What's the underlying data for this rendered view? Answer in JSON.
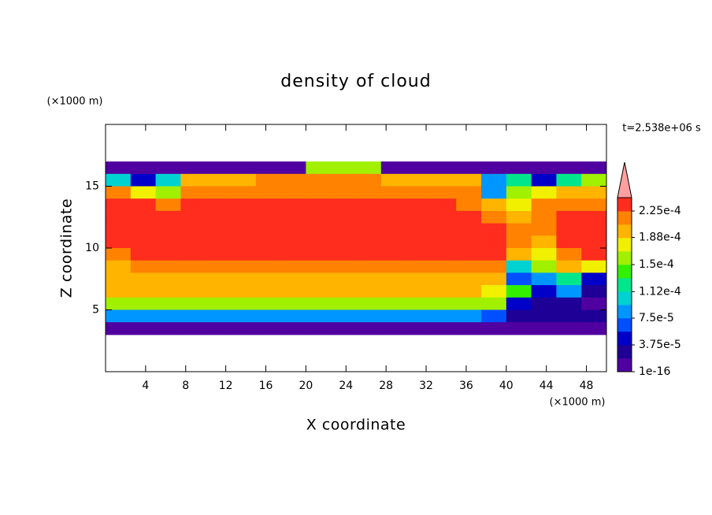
{
  "chart_data": {
    "type": "contour",
    "title": "density of cloud",
    "xlabel": "X coordinate",
    "ylabel": "Z coordinate",
    "x_unit": "(×1000 m)",
    "y_unit": "(×1000 m)",
    "time_label": "t=2.538e+06 s",
    "xlim": [
      0,
      50
    ],
    "ylim": [
      0,
      20
    ],
    "xticks": [
      4,
      8,
      12,
      16,
      20,
      24,
      28,
      32,
      36,
      40,
      44,
      48
    ],
    "yticks": [
      5,
      10,
      15
    ],
    "x": [
      1.25,
      3.75,
      6.25,
      8.75,
      11.25,
      13.75,
      16.25,
      18.75,
      21.25,
      23.75,
      26.25,
      28.75,
      31.25,
      33.75,
      36.25,
      38.75,
      41.25,
      43.75,
      46.25,
      48.75
    ],
    "y": [
      16.5,
      15.5,
      14.5,
      13.5,
      12.5,
      11.5,
      10.5,
      9.5,
      8.5,
      7.5,
      6.5,
      5.5,
      4.5,
      3.5
    ],
    "z": [
      [
        1e-05,
        1e-05,
        1e-05,
        1e-05,
        1e-05,
        1e-05,
        1e-05,
        1e-05,
        0.00015,
        0.00015,
        0.00015,
        1e-05,
        1e-05,
        1e-05,
        1e-05,
        1e-05,
        1e-05,
        1e-05,
        1e-05,
        1e-05
      ],
      [
        0.0001,
        5e-05,
        0.0001,
        0.00019,
        0.0002,
        0.0002,
        0.00021,
        0.00021,
        0.00021,
        0.00021,
        0.00021,
        0.0002,
        0.0002,
        0.0002,
        0.00019,
        8e-05,
        0.00012,
        5e-05,
        0.00013,
        0.00015
      ],
      [
        0.00021,
        0.00018,
        0.00016,
        0.00022,
        0.00022,
        0.00022,
        0.00022,
        0.00022,
        0.00022,
        0.00022,
        0.00022,
        0.00022,
        0.00022,
        0.00022,
        0.00021,
        9e-05,
        0.00016,
        0.00018,
        0.0002,
        0.0002
      ],
      [
        0.00023,
        0.00023,
        0.00021,
        0.00023,
        0.00023,
        0.00023,
        0.00023,
        0.00023,
        0.00023,
        0.00023,
        0.00023,
        0.00023,
        0.00023,
        0.00023,
        0.00022,
        0.0002,
        0.00017,
        0.00021,
        0.00022,
        0.00022
      ],
      [
        0.00023,
        0.00023,
        0.00023,
        0.00023,
        0.00023,
        0.00023,
        0.00023,
        0.00023,
        0.00023,
        0.00023,
        0.00023,
        0.00023,
        0.00023,
        0.00023,
        0.00023,
        0.00022,
        0.0002,
        0.00022,
        0.00023,
        0.00023
      ],
      [
        0.00023,
        0.00023,
        0.00023,
        0.00023,
        0.00023,
        0.00023,
        0.00023,
        0.00023,
        0.00023,
        0.00023,
        0.00023,
        0.00023,
        0.00023,
        0.00023,
        0.00023,
        0.00023,
        0.00021,
        0.00022,
        0.00023,
        0.00023
      ],
      [
        0.00023,
        0.00023,
        0.00023,
        0.00023,
        0.00023,
        0.00023,
        0.00023,
        0.00023,
        0.00023,
        0.00023,
        0.00023,
        0.00023,
        0.00023,
        0.00023,
        0.00023,
        0.00023,
        0.00022,
        0.0002,
        0.00023,
        0.00023
      ],
      [
        0.00022,
        0.00023,
        0.00023,
        0.00023,
        0.00023,
        0.00023,
        0.00023,
        0.00023,
        0.00023,
        0.00023,
        0.00023,
        0.00023,
        0.00023,
        0.00023,
        0.00023,
        0.00023,
        0.00019,
        0.00017,
        0.00022,
        0.00023
      ],
      [
        0.0002,
        0.00021,
        0.00021,
        0.00021,
        0.00021,
        0.00021,
        0.00021,
        0.00021,
        0.00021,
        0.00021,
        0.00021,
        0.00021,
        0.00021,
        0.00021,
        0.00022,
        0.00022,
        0.0001,
        0.00015,
        0.0002,
        0.00018
      ],
      [
        0.0002,
        0.0002,
        0.0002,
        0.0002,
        0.0002,
        0.0002,
        0.0002,
        0.0002,
        0.0002,
        0.0002,
        0.0002,
        0.0002,
        0.0002,
        0.0002,
        0.0002,
        0.0002,
        6e-05,
        9e-05,
        0.00012,
        5e-05
      ],
      [
        0.00019,
        0.00019,
        0.00019,
        0.00019,
        0.00019,
        0.00019,
        0.00019,
        0.00019,
        0.00019,
        0.00019,
        0.00019,
        0.00019,
        0.00019,
        0.00019,
        0.00019,
        0.00018,
        0.00014,
        5e-05,
        8e-05,
        2e-05
      ],
      [
        0.00016,
        0.00016,
        0.00016,
        0.00016,
        0.00016,
        0.00016,
        0.00016,
        0.00016,
        0.00016,
        0.00016,
        0.00016,
        0.00016,
        0.00016,
        0.00016,
        0.00016,
        0.00015,
        4e-05,
        3e-05,
        2e-05,
        1e-05
      ],
      [
        8e-05,
        8e-05,
        8e-05,
        8e-05,
        8e-05,
        8e-05,
        8e-05,
        8e-05,
        8e-05,
        8e-05,
        8e-05,
        8e-05,
        8e-05,
        8e-05,
        8e-05,
        7e-05,
        3e-05,
        2e-05,
        2e-05,
        2e-05
      ],
      [
        1.5e-05,
        1.5e-05,
        1.5e-05,
        1.5e-05,
        1.5e-05,
        1.5e-05,
        1.5e-05,
        1.5e-05,
        1.5e-05,
        1.5e-05,
        1.5e-05,
        1.5e-05,
        1.5e-05,
        1.5e-05,
        1.5e-05,
        1.5e-05,
        1.5e-05,
        1.5e-05,
        1.5e-05,
        1.5e-05
      ]
    ],
    "colorbar": {
      "levels": [
        1e-16,
        1.875e-05,
        3.75e-05,
        5.625e-05,
        7.5e-05,
        9.375e-05,
        0.0001125,
        0.00013125,
        0.00015,
        0.00016875,
        0.0001875,
        0.00020625,
        0.000225,
        0.00024375
      ],
      "colors": [
        "#5000a0",
        "#1e0096",
        "#0000c8",
        "#0050ff",
        "#0096ff",
        "#00d2d2",
        "#00e68c",
        "#32f000",
        "#a0f000",
        "#f0f000",
        "#ffb400",
        "#ff8200",
        "#ff2d1e",
        "#ffa0a0"
      ],
      "ticks": [
        {
          "value": 1e-16,
          "label": "1e-16"
        },
        {
          "value": 3.75e-05,
          "label": "3.75e-5"
        },
        {
          "value": 7.5e-05,
          "label": "7.5e-5"
        },
        {
          "value": 0.000112,
          "label": "1.12e-4"
        },
        {
          "value": 0.00015,
          "label": "1.5e-4"
        },
        {
          "value": 0.000188,
          "label": "1.88e-4"
        },
        {
          "value": 0.000225,
          "label": "2.25e-4"
        }
      ]
    }
  }
}
